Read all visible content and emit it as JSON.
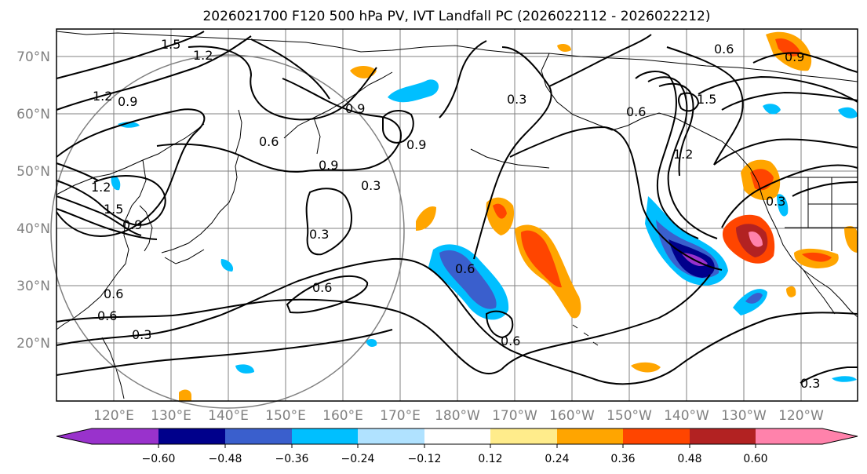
{
  "title": "2026021700 F120 500 hPa PV, IVT Landfall PC (2026022112 - 2026022212)",
  "latitude_labels": [
    "70°N",
    "60°N",
    "50°N",
    "40°N",
    "30°N",
    "20°N"
  ],
  "longitude_labels": [
    "120°E",
    "130°E",
    "140°E",
    "150°E",
    "160°E",
    "170°E",
    "180°W",
    "170°W",
    "160°W",
    "150°W",
    "140°W",
    "130°W",
    "120°W"
  ],
  "colorbar": {
    "colors": [
      "#9932cc",
      "#00008b",
      "#3a5fcd",
      "#00bfff",
      "#b0e2ff",
      "#ffffff",
      "#ffec8b",
      "#ffa500",
      "#ff4500",
      "#b22222",
      "#ff82ab"
    ],
    "tick_labels": [
      "−0.60",
      "−0.48",
      "−0.36",
      "−0.24",
      "−0.12",
      "0.12",
      "0.24",
      "0.36",
      "0.48",
      "0.60"
    ]
  },
  "contour_labels": [
    "1.5",
    "1.2",
    "0.9",
    "1.2",
    "0.6",
    "0.9",
    "0.9",
    "0.3",
    "0.6",
    "1.2",
    "0.9",
    "0.3",
    "0.6",
    "0.6",
    "0.3",
    "0.6",
    "0.6",
    "0.6",
    "0.9",
    "1.5",
    "1.2",
    "0.3",
    "0.3",
    "1.5",
    "0.6",
    "0.9",
    "0.3"
  ],
  "colors": {
    "land": "#000000",
    "grid": "#808080",
    "contour": "#000000",
    "circle": "#808080",
    "axis_label": "#808080"
  }
}
